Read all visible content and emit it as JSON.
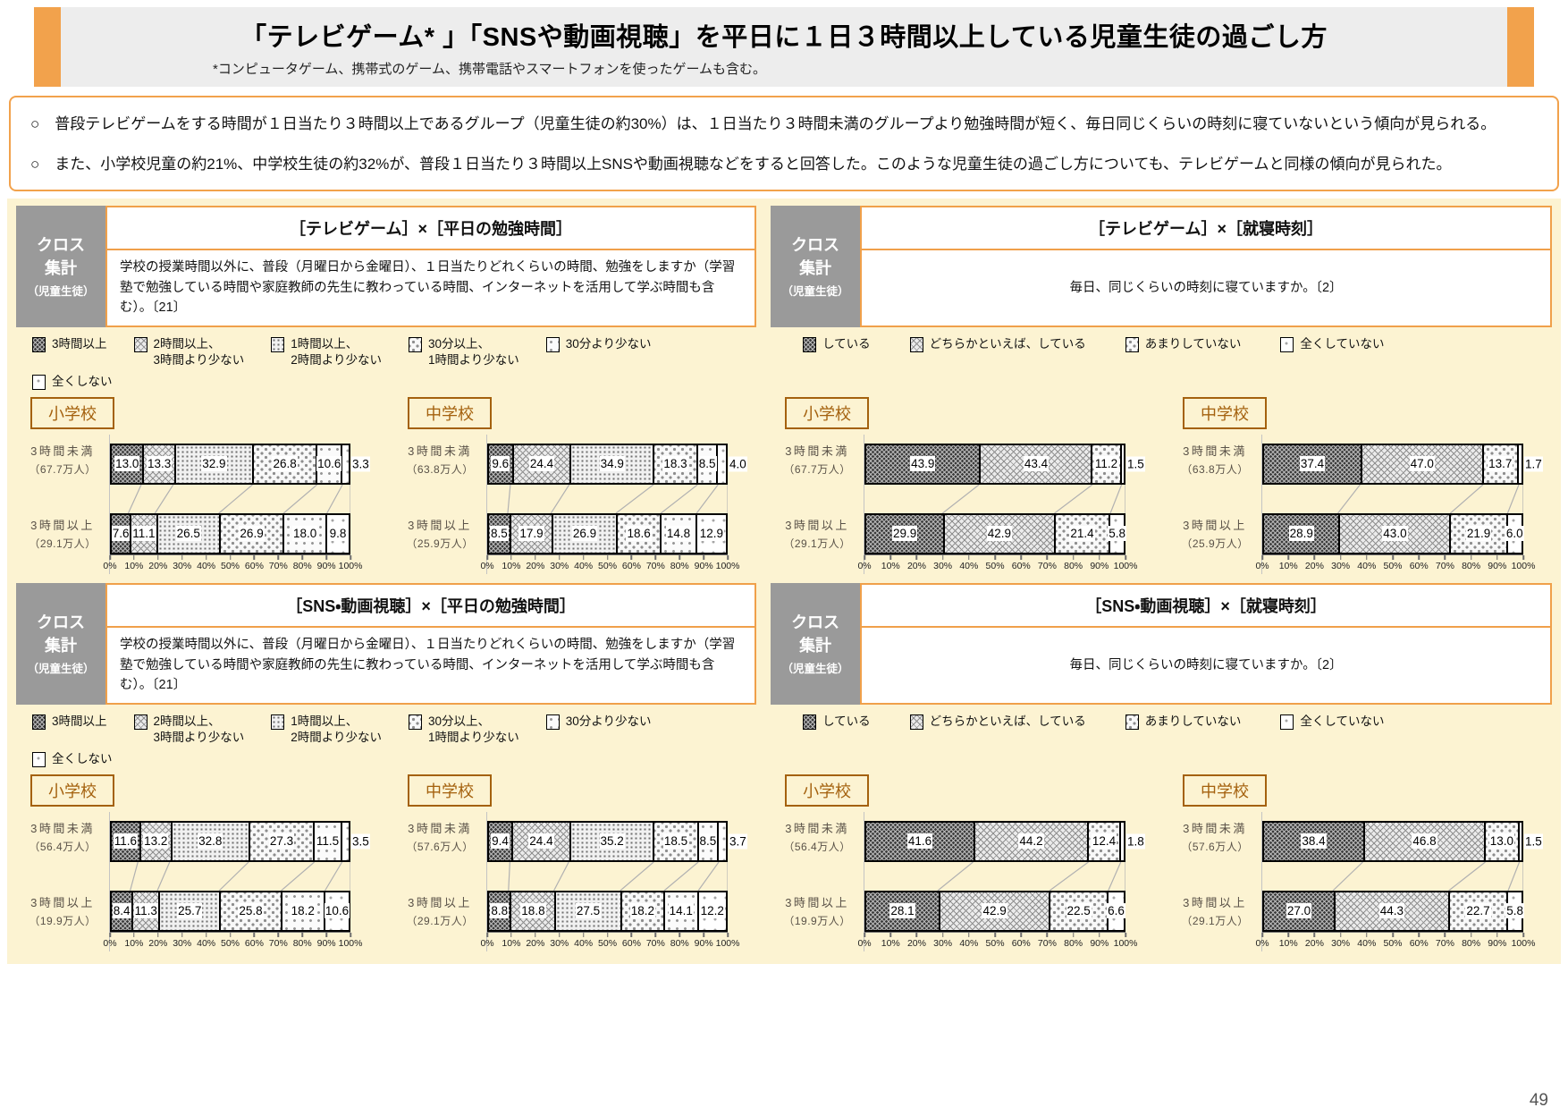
{
  "page": {
    "page_number": "49"
  },
  "header": {
    "title": "「テレビゲーム*​ 」「SNSや動画視聴」を平日に１日３時間以上している児童生徒の過ごし方",
    "footnote": "*コンピュータゲーム、携帯式のゲーム、携帯電話やスマートフォンを使ったゲームも含む。"
  },
  "summary": {
    "bullets": [
      "○　普段テレビゲームをする時間が１日当たり３時間以上であるグループ（児童生徒の約30%）は、１日当たり３時間未満のグループより勉強時間が短く、毎日同じくらいの時刻に寝ていないという傾向が見られる。",
      "○　また、小学校児童の約21%、中学校生徒の約32%が、普段１日当たり３時間以上SNSや動画視聴などをすると回答した。このような児童生徒の過ごし方についても、テレビゲームと同様の傾向が見られた。"
    ]
  },
  "panel_tag": {
    "main": "クロス\n集計",
    "sub": "（児童生徒）"
  },
  "axis": {
    "ticks": [
      "0%",
      "10%",
      "20%",
      "30%",
      "40%",
      "50%",
      "60%",
      "70%",
      "80%",
      "90%",
      "100%"
    ]
  },
  "chart_data": [
    {
      "type": "bar",
      "stacked": true,
      "xlim": [
        0,
        100
      ],
      "value_unit": "%",
      "legend_position": "top",
      "title": "［テレビゲーム］×［平日の勉強時間］",
      "question": "学校の授業時間以外に、普段（月曜日から金曜日）、１日当たりどれくらいの時間、勉強をしますか（学習塾で勉強している時間や家庭教師の先生に教わっている時間、インターネットを活用して学ぶ時間も含む）。〔21〕",
      "legend_rows": [
        [
          "3時間以上",
          "2時間以上、\n3時間より少ない",
          "1時間以上、\n2時間より少ない",
          "30分以上、\n1時間より少ない",
          "30分より少ない"
        ],
        [
          "全くしない"
        ]
      ],
      "patterns": [
        "a",
        "b",
        "c",
        "d",
        "e",
        "f"
      ],
      "groups": [
        {
          "school": "小学校",
          "rows": [
            {
              "label": "3時間未満",
              "size": "（67.7万人）",
              "values": [
                13.0,
                13.3,
                32.9,
                26.8,
                10.6,
                3.3
              ]
            },
            {
              "label": "3時間以上",
              "size": "（29.1万人）",
              "values": [
                7.6,
                11.1,
                26.5,
                26.9,
                18.0,
                9.8
              ]
            }
          ]
        },
        {
          "school": "中学校",
          "rows": [
            {
              "label": "3時間未満",
              "size": "（63.8万人）",
              "values": [
                9.6,
                24.4,
                34.9,
                18.3,
                8.5,
                4.0
              ]
            },
            {
              "label": "3時間以上",
              "size": "（25.9万人）",
              "values": [
                8.5,
                17.9,
                26.9,
                18.6,
                14.8,
                12.9
              ]
            }
          ]
        }
      ]
    },
    {
      "type": "bar",
      "stacked": true,
      "xlim": [
        0,
        100
      ],
      "value_unit": "%",
      "legend_position": "top",
      "title": "［テレビゲーム］×［就寝時刻］",
      "question": "毎日、同じくらいの時刻に寝ていますか。〔2〕",
      "legend_rows": [
        [
          "している",
          "どちらかといえば、している",
          "あまりしていない",
          "全くしていない"
        ]
      ],
      "patterns": [
        "a",
        "b",
        "d",
        "f"
      ],
      "groups": [
        {
          "school": "小学校",
          "rows": [
            {
              "label": "3時間未満",
              "size": "（67.7万人）",
              "values": [
                43.9,
                43.4,
                11.2,
                1.5
              ]
            },
            {
              "label": "3時間以上",
              "size": "（29.1万人）",
              "values": [
                29.9,
                42.9,
                21.4,
                5.8
              ]
            }
          ]
        },
        {
          "school": "中学校",
          "rows": [
            {
              "label": "3時間未満",
              "size": "（63.8万人）",
              "values": [
                37.4,
                47.0,
                13.7,
                1.7
              ]
            },
            {
              "label": "3時間以上",
              "size": "（25.9万人）",
              "values": [
                28.9,
                43.0,
                21.9,
                6.0
              ]
            }
          ]
        }
      ]
    },
    {
      "type": "bar",
      "stacked": true,
      "xlim": [
        0,
        100
      ],
      "value_unit": "%",
      "legend_position": "top",
      "title": "［SNS・動画視聴］×［平日の勉強時間］",
      "question": "学校の授業時間以外に、普段（月曜日から金曜日）、１日当たりどれくらいの時間、勉強をしますか（学習塾で勉強している時間や家庭教師の先生に教わっている時間、インターネットを活用して学ぶ時間も含む）。〔21〕",
      "legend_rows": [
        [
          "3時間以上",
          "2時間以上、\n3時間より少ない",
          "1時間以上、\n2時間より少ない",
          "30分以上、\n1時間より少ない",
          "30分より少ない"
        ],
        [
          "全くしない"
        ]
      ],
      "patterns": [
        "a",
        "b",
        "c",
        "d",
        "e",
        "f"
      ],
      "groups": [
        {
          "school": "小学校",
          "rows": [
            {
              "label": "3時間未満",
              "size": "（56.4万人）",
              "values": [
                11.6,
                13.2,
                32.8,
                27.3,
                11.5,
                3.5
              ]
            },
            {
              "label": "3時間以上",
              "size": "（19.9万人）",
              "values": [
                8.4,
                11.3,
                25.7,
                25.8,
                18.2,
                10.6
              ]
            }
          ]
        },
        {
          "school": "中学校",
          "rows": [
            {
              "label": "3時間未満",
              "size": "（57.6万人）",
              "values": [
                9.4,
                24.4,
                35.2,
                18.5,
                8.5,
                3.7
              ]
            },
            {
              "label": "3時間以上",
              "size": "（29.1万人）",
              "values": [
                8.8,
                18.8,
                27.5,
                18.2,
                14.1,
                12.2
              ]
            }
          ]
        }
      ]
    },
    {
      "type": "bar",
      "stacked": true,
      "xlim": [
        0,
        100
      ],
      "value_unit": "%",
      "legend_position": "top",
      "title": "［SNS・動画視聴］×［就寝時刻］",
      "question": "毎日、同じくらいの時刻に寝ていますか。〔2〕",
      "legend_rows": [
        [
          "している",
          "どちらかといえば、している",
          "あまりしていない",
          "全くしていない"
        ]
      ],
      "patterns": [
        "a",
        "b",
        "d",
        "f"
      ],
      "groups": [
        {
          "school": "小学校",
          "rows": [
            {
              "label": "3時間未満",
              "size": "（56.4万人）",
              "values": [
                41.6,
                44.2,
                12.4,
                1.8
              ]
            },
            {
              "label": "3時間以上",
              "size": "（19.9万人）",
              "values": [
                28.1,
                42.9,
                22.5,
                6.6
              ]
            }
          ]
        },
        {
          "school": "中学校",
          "rows": [
            {
              "label": "3時間未満",
              "size": "（57.6万人）",
              "values": [
                38.4,
                46.8,
                13.0,
                1.5
              ]
            },
            {
              "label": "3時間以上",
              "size": "（29.1万人）",
              "values": [
                27.0,
                44.3,
                22.7,
                5.8
              ]
            }
          ]
        }
      ]
    }
  ]
}
